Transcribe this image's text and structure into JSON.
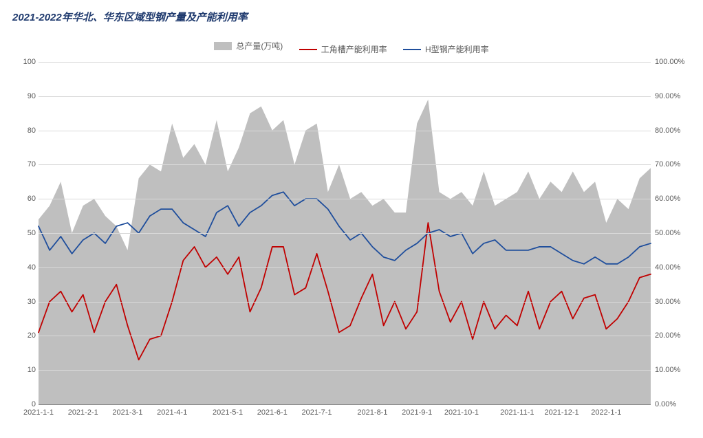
{
  "title": "2021-2022年华北、华东区域型钢产量及产能利用率",
  "legend": {
    "area": "总产量(万吨)",
    "line1": "工角槽产能利用率",
    "line2": "H型钢产能利用率"
  },
  "chart": {
    "type": "combo-area-line",
    "background_color": "#ffffff",
    "grid_color": "#d9d9d9",
    "axis_color": "#888888",
    "label_color": "#595959",
    "label_fontsize": 11,
    "area_color": "#bfbfbf",
    "line1_color": "#c00000",
    "line2_color": "#1f4e9c",
    "line_width": 1.8,
    "y_left": {
      "min": 0,
      "max": 100,
      "step": 10,
      "unit": ""
    },
    "y_right": {
      "min": 0,
      "max": 100,
      "step": 10,
      "unit_suffix": ".00%"
    },
    "x_categories": [
      "2021-1-1",
      "",
      "",
      "",
      "2021-2-1",
      "",
      "",
      "",
      "2021-3-1",
      "",
      "",
      "",
      "2021-4-1",
      "",
      "",
      "",
      "",
      "2021-5-1",
      "",
      "",
      "",
      "2021-6-1",
      "",
      "",
      "",
      "2021-7-1",
      "",
      "",
      "",
      "",
      "2021-8-1",
      "",
      "",
      "",
      "2021-9-1",
      "",
      "",
      "",
      "2021-10-1",
      "",
      "",
      "",
      "",
      "2021-11-1",
      "",
      "",
      "",
      "2021-12-1",
      "",
      "",
      "",
      "2022-1-1",
      "",
      "",
      "",
      ""
    ],
    "x_tick_labels": [
      "2021-1-1",
      "2021-2-1",
      "2021-3-1",
      "2021-4-1",
      "2021-5-1",
      "2021-6-1",
      "2021-7-1",
      "2021-8-1",
      "2021-9-1",
      "2021-10-1",
      "2021-11-1",
      "2021-12-1",
      "2022-1-1"
    ],
    "x_tick_positions": [
      0,
      4,
      8,
      12,
      17,
      21,
      25,
      30,
      34,
      38,
      43,
      47,
      51
    ],
    "n_points": 56,
    "series_area": [
      54,
      58,
      65,
      50,
      58,
      60,
      55,
      52,
      45,
      66,
      70,
      68,
      82,
      72,
      76,
      70,
      83,
      68,
      75,
      85,
      87,
      80,
      83,
      70,
      80,
      82,
      62,
      70,
      60,
      62,
      58,
      60,
      56,
      56,
      82,
      89,
      62,
      60,
      62,
      58,
      68,
      58,
      60,
      62,
      68,
      60,
      65,
      62,
      68,
      62,
      65,
      53,
      60,
      57,
      66,
      69
    ],
    "series_line1_pct": [
      21,
      30,
      33,
      27,
      32,
      21,
      30,
      35,
      23,
      13,
      19,
      20,
      30,
      42,
      46,
      40,
      43,
      38,
      43,
      27,
      34,
      46,
      46,
      32,
      34,
      44,
      33,
      21,
      23,
      31,
      38,
      23,
      30,
      22,
      27,
      53,
      33,
      24,
      30,
      19,
      30,
      22,
      26,
      23,
      33,
      22,
      30,
      33,
      25,
      31,
      32,
      22,
      25,
      30,
      37,
      38
    ],
    "series_line2_pct": [
      52,
      45,
      49,
      44,
      48,
      50,
      47,
      52,
      53,
      50,
      55,
      57,
      57,
      53,
      51,
      49,
      56,
      58,
      52,
      56,
      58,
      61,
      62,
      58,
      60,
      60,
      57,
      52,
      48,
      50,
      46,
      43,
      42,
      45,
      47,
      50,
      51,
      49,
      50,
      44,
      47,
      48,
      45,
      45,
      45,
      46,
      46,
      44,
      42,
      41,
      43,
      41,
      41,
      43,
      46,
      47
    ]
  }
}
